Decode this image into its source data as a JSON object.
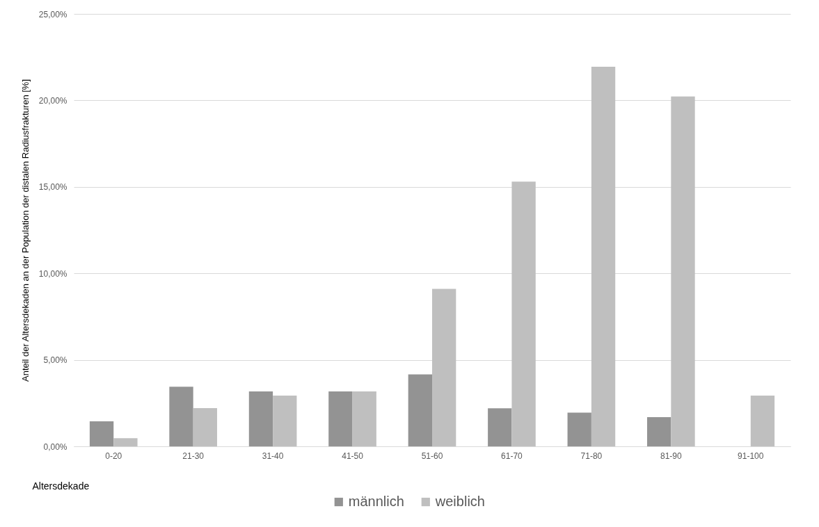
{
  "chart_data": {
    "type": "bar",
    "xlabel": "Altersdekade",
    "ylabel": "Anteil der Altersdekaden an der Population der distalen Radiusfrakturen [%]",
    "categories": [
      "0-20",
      "21-30",
      "31-40",
      "41-50",
      "51-60",
      "61-70",
      "71-80",
      "81-90",
      "91-100"
    ],
    "series": [
      {
        "name": "männlich",
        "color": "#939393",
        "values": [
          1.45,
          3.45,
          3.18,
          3.18,
          4.16,
          2.2,
          1.95,
          1.69,
          0
        ]
      },
      {
        "name": "weiblich",
        "color": "#bfbfbf",
        "values": [
          0.47,
          2.21,
          2.93,
          3.18,
          9.1,
          15.3,
          21.95,
          20.23,
          2.93
        ]
      }
    ],
    "ylim": [
      0,
      25
    ],
    "yticks": [
      {
        "value": 0,
        "label": "0,00%"
      },
      {
        "value": 5,
        "label": "5,00%"
      },
      {
        "value": 10,
        "label": "10,00%"
      },
      {
        "value": 15,
        "label": "15,00%"
      },
      {
        "value": 20,
        "label": "20,00%"
      },
      {
        "value": 25,
        "label": "25,00%"
      }
    ],
    "grid": "y",
    "legend": "bottom"
  }
}
